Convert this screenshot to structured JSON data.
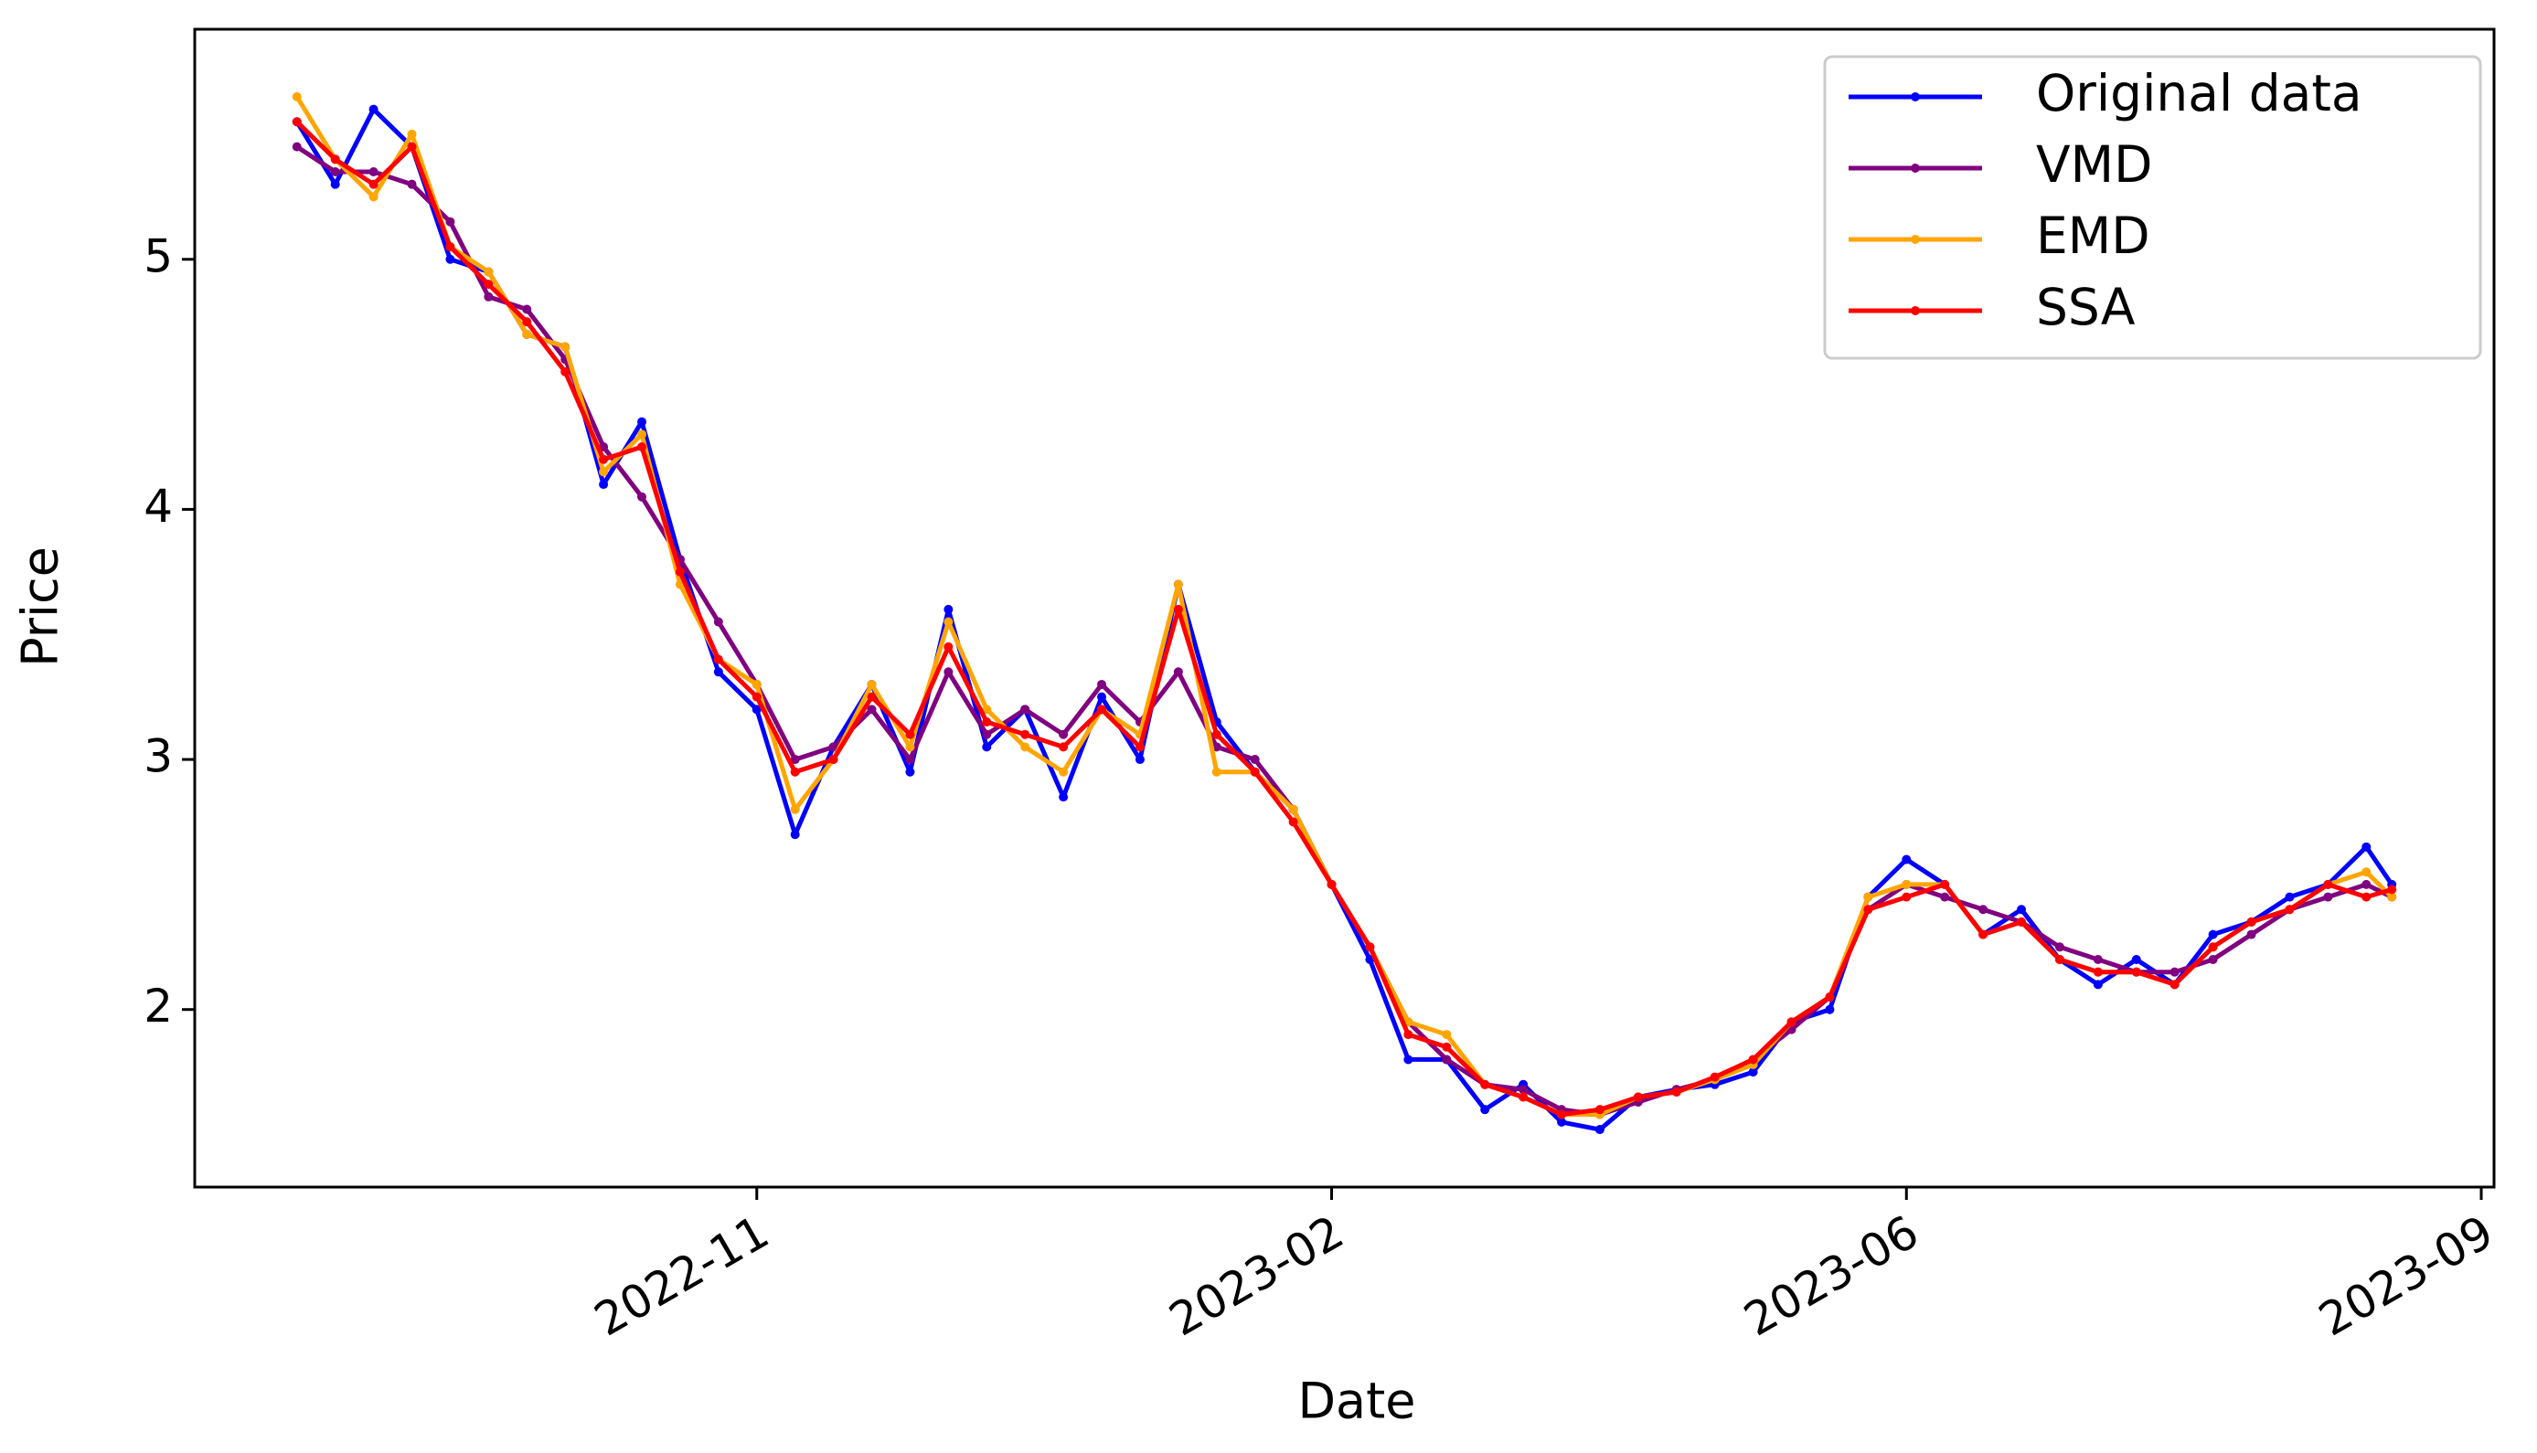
{
  "chart_data": {
    "type": "line",
    "xlabel": "Date",
    "ylabel": "Price",
    "x": [
      -72,
      -66,
      -60,
      -54,
      -48,
      -42,
      -36,
      -30,
      -24,
      -18,
      -12,
      -6,
      0,
      6,
      12,
      18,
      24,
      30,
      36,
      42,
      48,
      54,
      60,
      66,
      72,
      78,
      84,
      90,
      96,
      102,
      108,
      114,
      120,
      126,
      132,
      138,
      144,
      150,
      156,
      162,
      168,
      174,
      180,
      186,
      192,
      198,
      204,
      210,
      216,
      222,
      228,
      234,
      240,
      246,
      252,
      256
    ],
    "series": [
      {
        "name": "Original data",
        "color": "#0000ff",
        "values": [
          5.55,
          5.3,
          5.6,
          5.45,
          5.0,
          4.95,
          4.7,
          4.65,
          4.1,
          4.35,
          3.8,
          3.35,
          3.2,
          2.7,
          3.05,
          3.3,
          2.95,
          3.6,
          3.05,
          3.2,
          2.85,
          3.25,
          3.0,
          3.7,
          3.15,
          2.95,
          2.8,
          2.5,
          2.2,
          1.8,
          1.8,
          1.6,
          1.7,
          1.55,
          1.52,
          1.65,
          1.68,
          1.7,
          1.75,
          1.95,
          2.0,
          2.45,
          2.6,
          2.5,
          2.3,
          2.4,
          2.2,
          2.1,
          2.2,
          2.1,
          2.3,
          2.35,
          2.45,
          2.5,
          2.65,
          2.5
        ]
      },
      {
        "name": "VMD",
        "color": "#800080",
        "values": [
          5.45,
          5.35,
          5.35,
          5.3,
          5.15,
          4.85,
          4.8,
          4.6,
          4.25,
          4.05,
          3.8,
          3.55,
          3.3,
          3.0,
          3.05,
          3.2,
          3.0,
          3.35,
          3.1,
          3.2,
          3.1,
          3.3,
          3.15,
          3.35,
          3.05,
          3.0,
          2.8,
          2.5,
          2.25,
          1.95,
          1.8,
          1.7,
          1.68,
          1.6,
          1.58,
          1.63,
          1.68,
          1.72,
          1.8,
          1.92,
          2.05,
          2.4,
          2.5,
          2.45,
          2.4,
          2.35,
          2.25,
          2.2,
          2.15,
          2.15,
          2.2,
          2.3,
          2.4,
          2.45,
          2.5,
          2.45
        ]
      },
      {
        "name": "EMD",
        "color": "#ffa500",
        "values": [
          5.65,
          5.4,
          5.25,
          5.5,
          5.05,
          4.95,
          4.7,
          4.65,
          4.15,
          4.3,
          3.7,
          3.4,
          3.3,
          2.8,
          3.0,
          3.3,
          3.05,
          3.55,
          3.2,
          3.05,
          2.95,
          3.2,
          3.1,
          3.7,
          2.95,
          2.95,
          2.8,
          2.5,
          2.25,
          1.95,
          1.9,
          1.7,
          1.65,
          1.58,
          1.58,
          1.65,
          1.67,
          1.72,
          1.78,
          1.95,
          2.05,
          2.45,
          2.5,
          2.5,
          2.3,
          2.35,
          2.2,
          2.15,
          2.15,
          2.1,
          2.25,
          2.35,
          2.4,
          2.5,
          2.55,
          2.45
        ]
      },
      {
        "name": "SSA",
        "color": "#ff0000",
        "values": [
          5.55,
          5.4,
          5.3,
          5.45,
          5.05,
          4.9,
          4.75,
          4.55,
          4.2,
          4.25,
          3.75,
          3.4,
          3.25,
          2.95,
          3.0,
          3.25,
          3.1,
          3.45,
          3.15,
          3.1,
          3.05,
          3.2,
          3.05,
          3.6,
          3.1,
          2.95,
          2.75,
          2.5,
          2.25,
          1.9,
          1.85,
          1.7,
          1.65,
          1.58,
          1.6,
          1.65,
          1.67,
          1.73,
          1.8,
          1.95,
          2.05,
          2.4,
          2.45,
          2.5,
          2.3,
          2.35,
          2.2,
          2.15,
          2.15,
          2.1,
          2.25,
          2.35,
          2.4,
          2.5,
          2.45,
          2.48
        ]
      }
    ],
    "xlim": [
      -88,
      272
    ],
    "xticks": [
      {
        "value": 0,
        "label": "2022-11"
      },
      {
        "value": 90,
        "label": "2023-02"
      },
      {
        "value": 180,
        "label": "2023-06"
      },
      {
        "value": 270,
        "label": "2023-09"
      }
    ],
    "ylim": [
      1.29,
      5.92
    ],
    "yticks": [
      2,
      3,
      4,
      5
    ],
    "legend": "upper right"
  }
}
